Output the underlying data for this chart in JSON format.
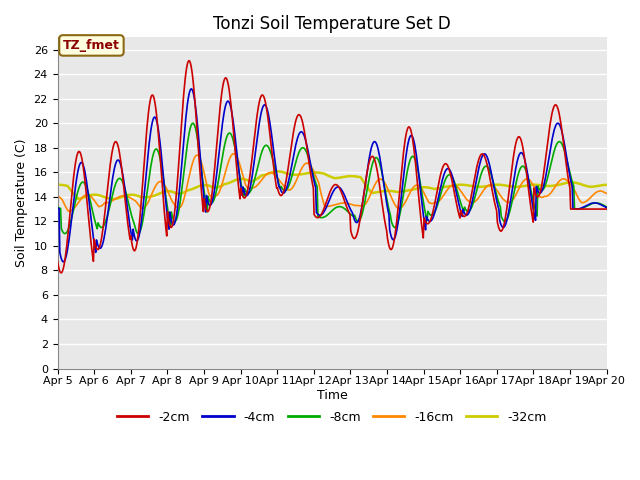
{
  "title": "Tonzi Soil Temperature Set D",
  "xlabel": "Time",
  "ylabel": "Soil Temperature (C)",
  "annotation": "TZ_fmet",
  "ylim": [
    0,
    27
  ],
  "yticks": [
    0,
    2,
    4,
    6,
    8,
    10,
    12,
    14,
    16,
    18,
    20,
    22,
    24,
    26
  ],
  "x_labels": [
    "Apr 5",
    "Apr 6",
    "Apr 7",
    "Apr 8",
    "Apr 9",
    "Apr 10",
    "Apr 11",
    "Apr 12",
    "Apr 13",
    "Apr 14",
    "Apr 15",
    "Apr 16",
    "Apr 17",
    "Apr 18",
    "Apr 19",
    "Apr 20"
  ],
  "series": {
    "-2cm": {
      "color": "#CC0000",
      "linewidth": 1.2
    },
    "-4cm": {
      "color": "#0000CC",
      "linewidth": 1.2
    },
    "-8cm": {
      "color": "#00AA00",
      "linewidth": 1.2
    },
    "-16cm": {
      "color": "#FF8800",
      "linewidth": 1.2
    },
    "-32cm": {
      "color": "#CCCC00",
      "linewidth": 1.8
    }
  },
  "plot_bg_color": "#E8E8E8",
  "grid_color": "white",
  "title_fontsize": 12,
  "label_fontsize": 9,
  "tick_fontsize": 8,
  "days": 15
}
